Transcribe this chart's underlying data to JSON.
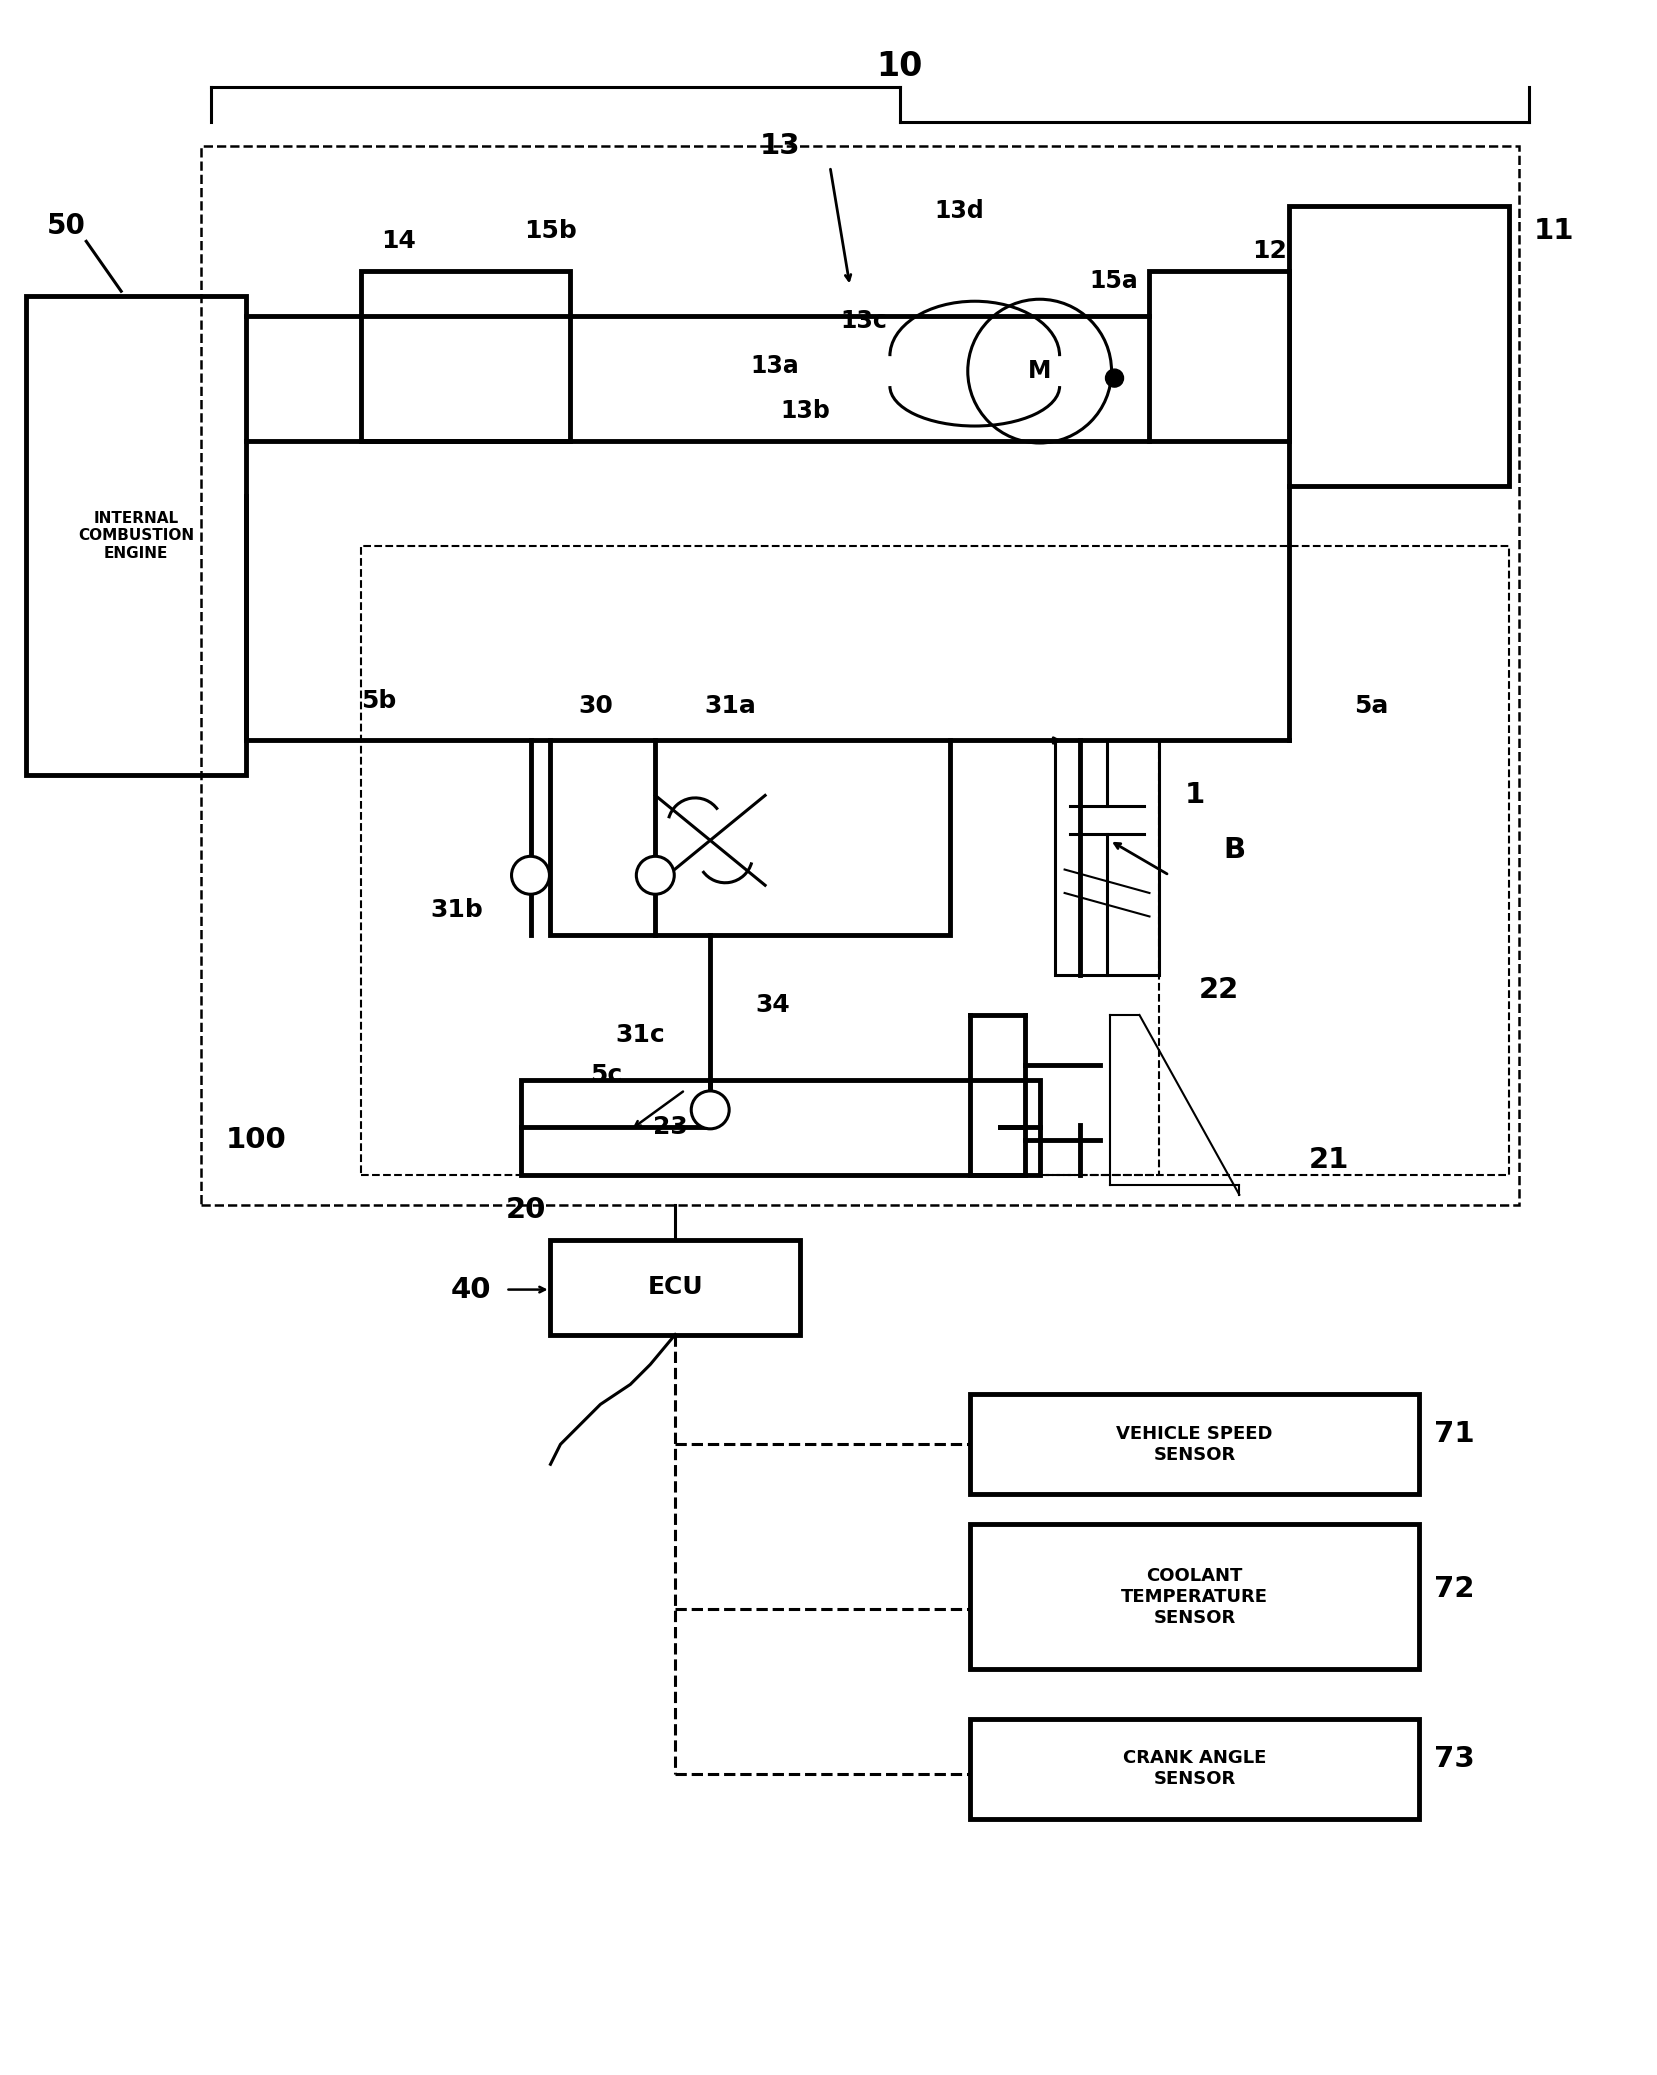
{
  "bg_color": "#ffffff",
  "line_color": "#000000",
  "label_10": "10",
  "label_50": "50",
  "label_11": "11",
  "label_12": "12",
  "label_13": "13",
  "label_13a": "13a",
  "label_13b": "13b",
  "label_13c": "13c",
  "label_13d": "13d",
  "label_14": "14",
  "label_15a": "15a",
  "label_15b": "15b",
  "label_1": "1",
  "label_B": "B",
  "label_5a": "5a",
  "label_5b": "5b",
  "label_5c": "5c",
  "label_20": "20",
  "label_21": "21",
  "label_22": "22",
  "label_23": "23",
  "label_30": "30",
  "label_31a": "31a",
  "label_31b": "31b",
  "label_31c": "31c",
  "label_34": "34",
  "label_40": "40",
  "label_100": "100",
  "label_ecu": "ECU",
  "label_ice": "INTERNAL\nCOMBUSTION\nENGINE",
  "label_vss": "VEHICLE SPEED\nSENSOR",
  "label_cts": "COOLANT\nTEMPERATURE\nSENSOR",
  "label_cas": "CRANK ANGLE\nSENSOR",
  "label_71": "71",
  "label_72": "72",
  "label_73": "73",
  "label_M": "M"
}
